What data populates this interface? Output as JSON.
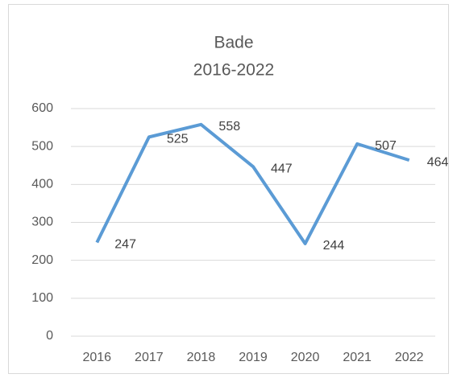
{
  "chart_data": {
    "type": "line",
    "title": "Bade",
    "subtitle": "2016-2022",
    "categories": [
      "2016",
      "2017",
      "2018",
      "2019",
      "2020",
      "2021",
      "2022"
    ],
    "series": [
      {
        "name": "Bade",
        "color": "#5b9bd5",
        "values": [
          247,
          525,
          558,
          447,
          244,
          507,
          464
        ]
      }
    ],
    "ylim": [
      0,
      600
    ],
    "yticks": [
      0,
      100,
      200,
      300,
      400,
      500,
      600
    ],
    "grid": true
  }
}
